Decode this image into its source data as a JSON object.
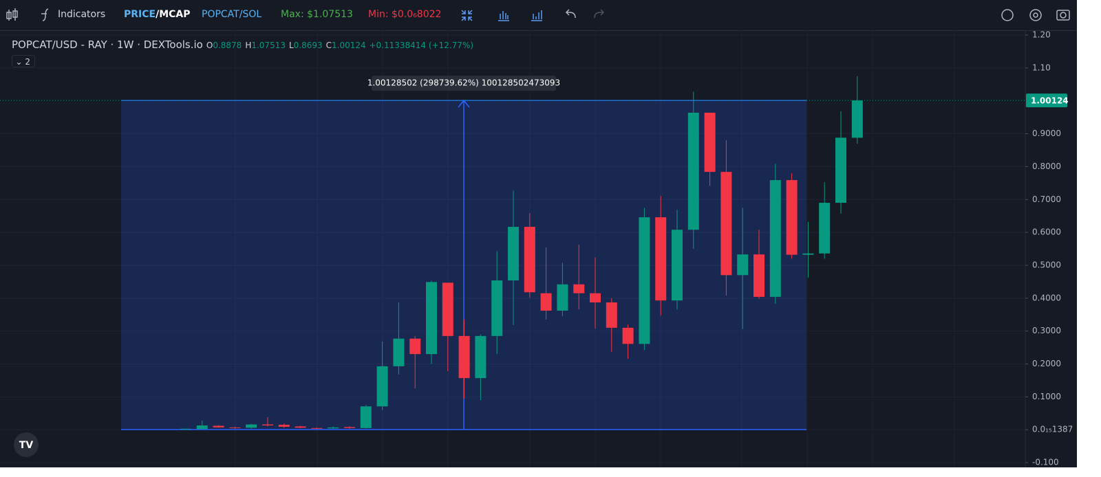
{
  "toolbar": {
    "indicators": "Indicators",
    "price": "PRICE",
    "mcap": "/MCAP",
    "pair_alt": "POPCAT/SOL",
    "max": "Max: $1.07513",
    "min": "Min: $0.0₆8022"
  },
  "legend": {
    "title": "POPCAT/USD - RAY · 1W · DEXTools.io",
    "items": [
      {
        "key": "O",
        "value": "0.8878"
      },
      {
        "key": "H",
        "value": "1.07513"
      },
      {
        "key": "L",
        "value": "0.8693"
      },
      {
        "key": "C",
        "value": "1.00124"
      }
    ],
    "change": "+0.11338414 (+12.77%)",
    "collapsed": "2"
  },
  "chart_data": {
    "type": "candlestick",
    "up_color": "#089981",
    "down_color": "#f23645",
    "ylim": [
      -0.1145,
      1.2126
    ],
    "yticks": [
      {
        "value": 1.2,
        "label": "1.20"
      },
      {
        "value": 1.1,
        "label": "1.10"
      },
      {
        "value": 0.9,
        "label": "0.9000"
      },
      {
        "value": 0.8,
        "label": "0.8000"
      },
      {
        "value": 0.7,
        "label": "0.7000"
      },
      {
        "value": 0.6,
        "label": "0.6000"
      },
      {
        "value": 0.5,
        "label": "0.5000"
      },
      {
        "value": 0.4,
        "label": "0.4000"
      },
      {
        "value": 0.3,
        "label": "0.3000"
      },
      {
        "value": 0.2,
        "label": "0.2000"
      },
      {
        "value": 0.1,
        "label": "0.1000"
      },
      {
        "value": 1.387e-16,
        "label": "0.0₁₅1387"
      },
      {
        "value": -0.1,
        "label": "-0.100"
      }
    ],
    "grid": true,
    "open": [
      0.001,
      0.002,
      0.012,
      0.007,
      0.006,
      0.016,
      0.015,
      0.01,
      0.005,
      0.004,
      0.008,
      0.005,
      0.071,
      0.193,
      0.277,
      0.23,
      0.447,
      0.285,
      0.157,
      0.285,
      0.454,
      0.617,
      0.415,
      0.362,
      0.442,
      0.415,
      0.387,
      0.31,
      0.261,
      0.646,
      0.393,
      0.608,
      0.964,
      0.784,
      0.47,
      0.533,
      0.404,
      0.759,
      0.532,
      0.536,
      0.69,
      0.8878
    ],
    "high": [
      0.003,
      0.028,
      0.014,
      0.009,
      0.018,
      0.038,
      0.019,
      0.012,
      0.007,
      0.01,
      0.011,
      0.075,
      0.268,
      0.387,
      0.285,
      0.453,
      0.447,
      0.335,
      0.29,
      0.543,
      0.727,
      0.659,
      0.554,
      0.508,
      0.563,
      0.524,
      0.4,
      0.32,
      0.675,
      0.711,
      0.669,
      1.028,
      0.964,
      0.88,
      0.675,
      0.608,
      0.809,
      0.78,
      0.632,
      0.753,
      0.968,
      1.07513
    ],
    "low": [
      0,
      0.001,
      0.006,
      0.003,
      0.003,
      0.01,
      0.006,
      0.005,
      0.003,
      0.002,
      0.003,
      0.004,
      0.06,
      0.168,
      0.126,
      0.2,
      0.178,
      0.095,
      0.09,
      0.23,
      0.318,
      0.401,
      0.335,
      0.345,
      0.366,
      0.308,
      0.237,
      0.216,
      0.243,
      0.347,
      0.366,
      0.55,
      0.742,
      0.408,
      0.306,
      0.398,
      0.383,
      0.52,
      0.462,
      0.52,
      0.657,
      0.8693
    ],
    "close": [
      0.003,
      0.013,
      0.007,
      0.005,
      0.016,
      0.013,
      0.009,
      0.006,
      0.004,
      0.007,
      0.005,
      0.071,
      0.193,
      0.277,
      0.23,
      0.449,
      0.285,
      0.157,
      0.285,
      0.454,
      0.617,
      0.418,
      0.362,
      0.442,
      0.415,
      0.387,
      0.31,
      0.261,
      0.646,
      0.393,
      0.608,
      0.964,
      0.784,
      0.47,
      0.533,
      0.404,
      0.759,
      0.532,
      0.536,
      0.69,
      0.888,
      1.00124
    ],
    "measure": {
      "range": [
        0.000335,
        1.00128502
      ],
      "label": "1.00128502 (298739.62%) 100128502473093"
    }
  }
}
